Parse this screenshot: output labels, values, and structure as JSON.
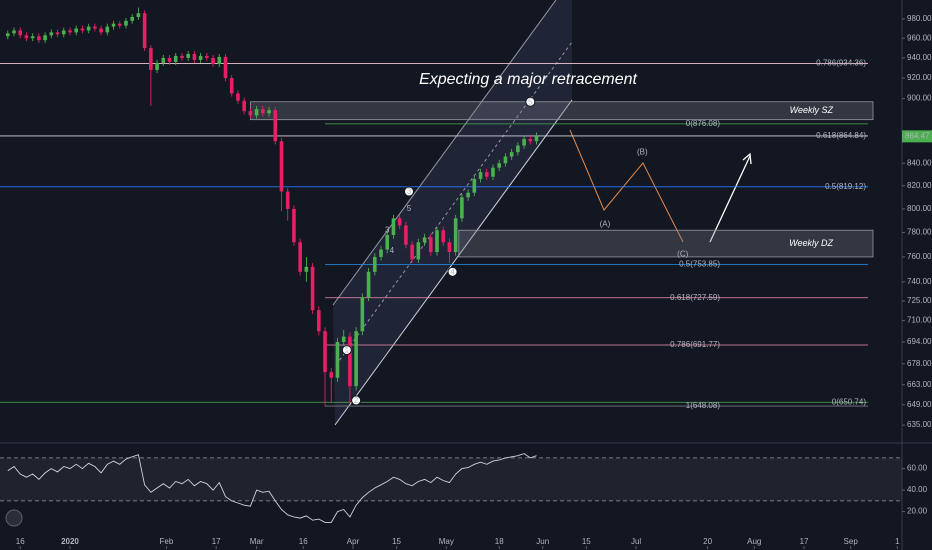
{
  "chart_data": {
    "type": "candlestick",
    "title": "Expecting a major retracement",
    "log_scale": true,
    "grid": false,
    "up_color": "#4caf50",
    "down_color": "#e91e63",
    "xlim": [
      -22.5,
      267.5
    ],
    "xticks": [
      {
        "value": -16,
        "label": "16"
      },
      {
        "value": 0,
        "label": "2020"
      },
      {
        "value": 31,
        "label": "Feb"
      },
      {
        "value": 47,
        "label": "17"
      },
      {
        "value": 60,
        "label": "Mar"
      },
      {
        "value": 75,
        "label": "16"
      },
      {
        "value": 91,
        "label": "Apr"
      },
      {
        "value": 105,
        "label": "15"
      },
      {
        "value": 121,
        "label": "May"
      },
      {
        "value": 138,
        "label": "18"
      },
      {
        "value": 152,
        "label": "Jun"
      },
      {
        "value": 166,
        "label": "15"
      },
      {
        "value": 182,
        "label": "Jul"
      },
      {
        "value": 205,
        "label": "20"
      },
      {
        "value": 220,
        "label": "Aug"
      },
      {
        "value": 236,
        "label": "17"
      },
      {
        "value": 251,
        "label": "Sep"
      },
      {
        "value": 266,
        "label": "1"
      }
    ],
    "ylim": [
      625,
      1000
    ],
    "yticks": [
      {
        "value": 635,
        "label": "635.00"
      },
      {
        "value": 649,
        "label": "649.00"
      },
      {
        "value": 663,
        "label": "663.00"
      },
      {
        "value": 678,
        "label": "678.00"
      },
      {
        "value": 694,
        "label": "694.00"
      },
      {
        "value": 710,
        "label": "710.00"
      },
      {
        "value": 725,
        "label": "725.00"
      },
      {
        "value": 740,
        "label": "740.00"
      },
      {
        "value": 760,
        "label": "760.00"
      },
      {
        "value": 780,
        "label": "780.00"
      },
      {
        "value": 800,
        "label": "800.00"
      },
      {
        "value": 820,
        "label": "820.00"
      },
      {
        "value": 840,
        "label": "840.00"
      },
      {
        "value": 900,
        "label": "900.00"
      },
      {
        "value": 920,
        "label": "920.00"
      },
      {
        "value": 940,
        "label": "940.00"
      },
      {
        "value": 960,
        "label": "960.00"
      },
      {
        "value": 980,
        "label": "980.00"
      }
    ],
    "x": [
      -20,
      -18,
      -16,
      -14,
      -12,
      -10,
      -8,
      -6,
      -4,
      -2,
      0,
      2,
      4,
      6,
      8,
      10,
      12,
      14,
      16,
      18,
      20,
      22,
      24,
      26,
      28,
      30,
      32,
      34,
      36,
      38,
      40,
      42,
      44,
      46,
      48,
      50,
      52,
      54,
      56,
      58,
      60,
      62,
      64,
      66,
      68,
      70,
      72,
      74,
      76,
      78,
      80,
      82,
      84,
      86,
      88,
      90,
      92,
      94,
      96,
      98,
      100,
      102,
      104,
      106,
      108,
      110,
      112,
      114,
      116,
      118,
      120,
      122,
      124,
      126,
      128,
      130,
      132,
      134,
      136,
      138,
      140,
      142,
      144,
      146,
      148,
      150
    ],
    "open": [
      962,
      965,
      968,
      963,
      960,
      962,
      958,
      963,
      966,
      964,
      968,
      966,
      970,
      968,
      972,
      970,
      966,
      972,
      975,
      973,
      978,
      982,
      986,
      950,
      928,
      935,
      940,
      936,
      942,
      940,
      944,
      938,
      942,
      940,
      934,
      941,
      920,
      905,
      898,
      888,
      884,
      890,
      886,
      889,
      860,
      815,
      800,
      772,
      748,
      752,
      718,
      702,
      672,
      668,
      694,
      698,
      662,
      702,
      728,
      748,
      760,
      766,
      778,
      792,
      786,
      770,
      758,
      772,
      776,
      764,
      782,
      772,
      764,
      792,
      810,
      814,
      826,
      832,
      828,
      836,
      840,
      846,
      850,
      856,
      862,
      860
    ],
    "high": [
      968,
      971,
      971,
      966,
      965,
      965,
      966,
      969,
      969,
      971,
      971,
      973,
      973,
      975,
      975,
      973,
      975,
      978,
      978,
      981,
      985,
      992,
      989,
      953,
      938,
      943,
      943,
      945,
      945,
      947,
      947,
      945,
      945,
      943,
      944,
      944,
      923,
      908,
      901,
      891,
      893,
      893,
      892,
      892,
      863,
      818,
      803,
      775,
      760,
      755,
      721,
      705,
      675,
      697,
      703,
      701,
      705,
      731,
      751,
      763,
      769,
      781,
      795,
      795,
      789,
      773,
      775,
      779,
      779,
      785,
      785,
      775,
      795,
      813,
      817,
      829,
      835,
      835,
      839,
      843,
      849,
      853,
      859,
      865,
      866,
      868
    ],
    "low": [
      959,
      962,
      960,
      957,
      957,
      955,
      955,
      960,
      961,
      961,
      963,
      963,
      965,
      965,
      967,
      963,
      963,
      969,
      970,
      970,
      975,
      979,
      947,
      893,
      925,
      932,
      933,
      933,
      937,
      937,
      935,
      935,
      937,
      931,
      931,
      917,
      902,
      895,
      885,
      881,
      881,
      883,
      883,
      857,
      798,
      790,
      769,
      745,
      740,
      715,
      699,
      648,
      650,
      665,
      691,
      650,
      659,
      699,
      725,
      745,
      757,
      763,
      775,
      783,
      767,
      755,
      755,
      769,
      761,
      761,
      769,
      755,
      761,
      789,
      807,
      811,
      823,
      825,
      825,
      833,
      837,
      843,
      847,
      853,
      857,
      857
    ],
    "close": [
      965,
      968,
      963,
      960,
      962,
      958,
      963,
      966,
      964,
      968,
      966,
      970,
      968,
      972,
      970,
      966,
      972,
      975,
      973,
      978,
      982,
      986,
      950,
      928,
      935,
      940,
      936,
      942,
      940,
      944,
      938,
      942,
      940,
      934,
      941,
      920,
      905,
      898,
      888,
      884,
      890,
      886,
      889,
      860,
      815,
      800,
      772,
      748,
      752,
      718,
      702,
      672,
      668,
      694,
      698,
      662,
      702,
      728,
      748,
      760,
      766,
      778,
      792,
      786,
      770,
      758,
      772,
      776,
      764,
      782,
      772,
      764,
      792,
      810,
      814,
      826,
      832,
      828,
      836,
      840,
      846,
      850,
      856,
      862,
      860,
      864.47
    ],
    "levels": [
      {
        "label": "0.786(934.36)",
        "value": 934.36,
        "color": "#f3c6d6",
        "x0": -22.5
      },
      {
        "label": "0.618(864.84)",
        "value": 864.84,
        "color": "#d1d4dc",
        "x0": -22.5
      },
      {
        "label": "0.5(819.12)",
        "value": 819.12,
        "color": "#2979ff",
        "x0": -22.5
      },
      {
        "label": "0(650.74)",
        "value": 650.74,
        "color": "#4caf50",
        "x0": -22.5
      },
      {
        "label": "0(876.08)",
        "value": 876.08,
        "color": "#4caf50",
        "x0": 82
      },
      {
        "label": "0.5(753.85)",
        "value": 753.85,
        "color": "#2196f3",
        "x0": 82
      },
      {
        "label": "0.618(727.59)",
        "value": 727.59,
        "color": "#f48fb1",
        "x0": 82
      },
      {
        "label": "0.786(691.77)",
        "value": 691.77,
        "color": "#f48fb1",
        "x0": 82
      },
      {
        "label": "1(648.08)",
        "value": 648.08,
        "color": "#787b86",
        "x0": 82
      }
    ],
    "zones": [
      {
        "label": "Weekly SZ",
        "top": 897,
        "bottom": 880,
        "x0": 58
      },
      {
        "label": "Weekly DZ",
        "top": 782,
        "bottom": 760,
        "x0": 125
      }
    ],
    "annotations": [
      {
        "text": "1",
        "x": 89,
        "y": 688,
        "style": "circle"
      },
      {
        "text": "2",
        "x": 92,
        "y": 652,
        "style": "circle"
      },
      {
        "text": "3",
        "x": 109,
        "y": 815,
        "style": "circle"
      },
      {
        "text": "4",
        "x": 123,
        "y": 748,
        "style": "circle"
      },
      {
        "text": "5",
        "x": 148,
        "y": 897,
        "style": "circle"
      },
      {
        "text": "3",
        "x": 102,
        "y": 782,
        "style": "plain"
      },
      {
        "text": "4",
        "x": 103.5,
        "y": 765,
        "style": "plain"
      },
      {
        "text": "5",
        "x": 109,
        "y": 800,
        "style": "plain"
      },
      {
        "text": "(A)",
        "x": 172,
        "y": 787,
        "style": "plain"
      },
      {
        "text": "(B)",
        "x": 184,
        "y": 850,
        "style": "plain"
      },
      {
        "text": "(C)",
        "x": 197,
        "y": 762,
        "style": "plain"
      }
    ],
    "rsi": {
      "color": "#d1d4dc",
      "ylim": [
        -12,
        82
      ],
      "yticks": [
        {
          "value": 20,
          "label": "20.00"
        },
        {
          "value": 40,
          "label": "40.00"
        },
        {
          "value": 60,
          "label": "60.00"
        }
      ],
      "levels": [
        70,
        30
      ],
      "values": [
        58,
        62,
        55,
        52,
        55,
        50,
        56,
        60,
        57,
        62,
        60,
        64,
        60,
        65,
        62,
        56,
        64,
        67,
        64,
        69,
        71,
        73,
        45,
        38,
        42,
        46,
        42,
        48,
        46,
        50,
        44,
        48,
        46,
        40,
        47,
        34,
        30,
        28,
        26,
        25,
        40,
        38,
        39,
        30,
        22,
        17,
        15,
        14,
        16,
        12,
        13,
        10,
        10,
        20,
        22,
        15,
        26,
        33,
        38,
        42,
        45,
        48,
        52,
        50,
        46,
        44,
        48,
        50,
        47,
        52,
        49,
        47,
        55,
        60,
        61,
        64,
        66,
        64,
        67,
        68,
        70,
        71,
        72,
        74,
        70,
        72
      ]
    }
  }
}
